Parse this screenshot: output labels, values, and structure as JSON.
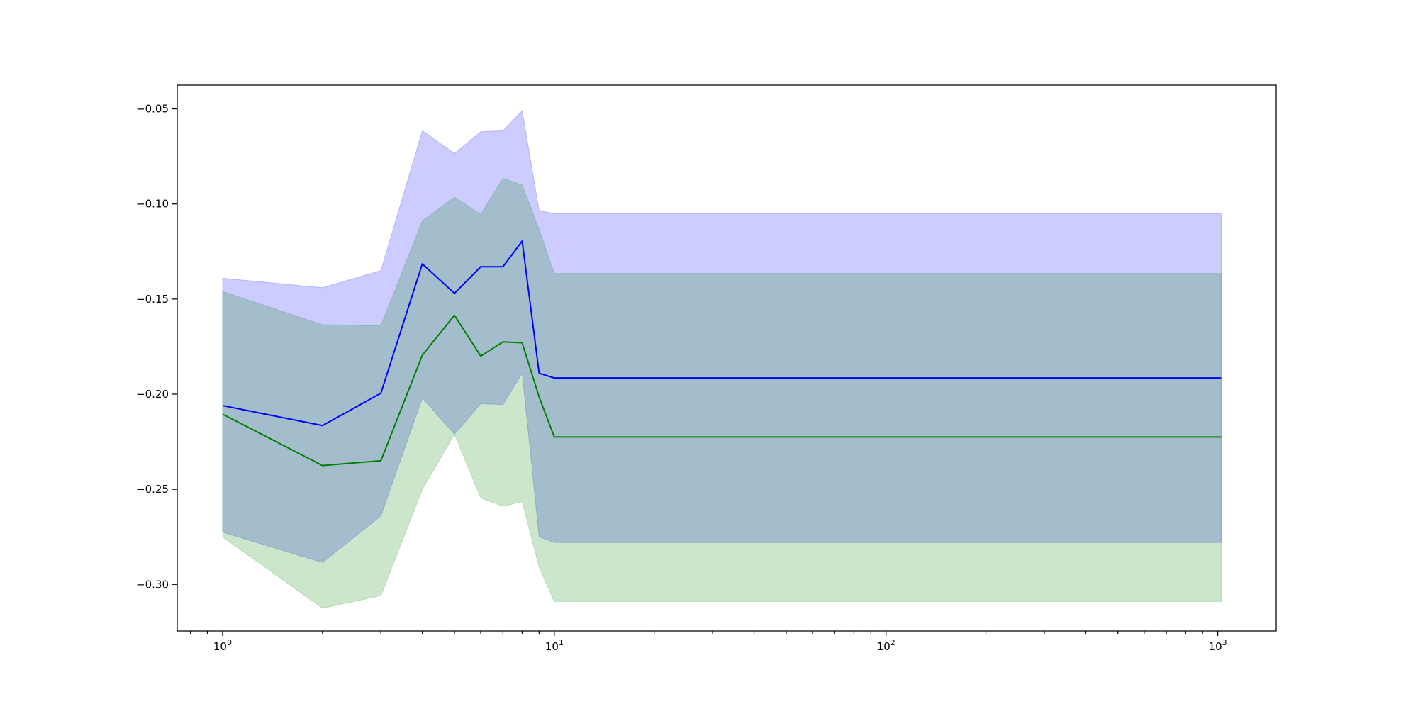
{
  "chart_data": {
    "type": "line",
    "x_scale": "log",
    "xlim": [
      0.73,
      1500
    ],
    "ylim": [
      -0.3245,
      -0.0375
    ],
    "x_ticks": [
      {
        "value": 1,
        "base": "10",
        "exp": "0"
      },
      {
        "value": 10,
        "base": "10",
        "exp": "1"
      },
      {
        "value": 100,
        "base": "10",
        "exp": "2"
      },
      {
        "value": 1000,
        "base": "10",
        "exp": "3"
      }
    ],
    "y_ticks": [
      {
        "value": -0.05,
        "label": "−0.05"
      },
      {
        "value": -0.1,
        "label": "−0.10"
      },
      {
        "value": -0.15,
        "label": "−0.15"
      },
      {
        "value": -0.2,
        "label": "−0.20"
      },
      {
        "value": -0.25,
        "label": "−0.25"
      },
      {
        "value": -0.3,
        "label": "−0.30"
      }
    ],
    "grid": false,
    "legend": "none",
    "x": [
      1,
      2,
      3,
      4,
      5,
      6,
      7,
      8,
      9,
      10,
      1024
    ],
    "series": [
      {
        "color": "#0000ff",
        "band_color": "#0000ff",
        "values": [
          -0.206,
          -0.2165,
          -0.1995,
          -0.1315,
          -0.147,
          -0.133,
          -0.133,
          -0.1195,
          -0.189,
          -0.1915,
          -0.1915
        ],
        "upper": [
          -0.139,
          -0.144,
          -0.135,
          -0.0615,
          -0.0735,
          -0.062,
          -0.0615,
          -0.051,
          -0.1035,
          -0.105,
          -0.105
        ],
        "lower": [
          -0.2725,
          -0.2885,
          -0.264,
          -0.202,
          -0.221,
          -0.205,
          -0.2055,
          -0.189,
          -0.275,
          -0.278,
          -0.278
        ]
      },
      {
        "color": "#008000",
        "band_color": "#008000",
        "values": [
          -0.2105,
          -0.2375,
          -0.235,
          -0.1795,
          -0.1585,
          -0.18,
          -0.1725,
          -0.173,
          -0.2015,
          -0.2225,
          -0.2225
        ],
        "upper": [
          -0.146,
          -0.1635,
          -0.164,
          -0.109,
          -0.0965,
          -0.1055,
          -0.0865,
          -0.09,
          -0.1135,
          -0.1365,
          -0.1365
        ],
        "lower": [
          -0.275,
          -0.3125,
          -0.306,
          -0.25,
          -0.221,
          -0.2545,
          -0.259,
          -0.2565,
          -0.291,
          -0.309,
          -0.309
        ]
      }
    ]
  }
}
